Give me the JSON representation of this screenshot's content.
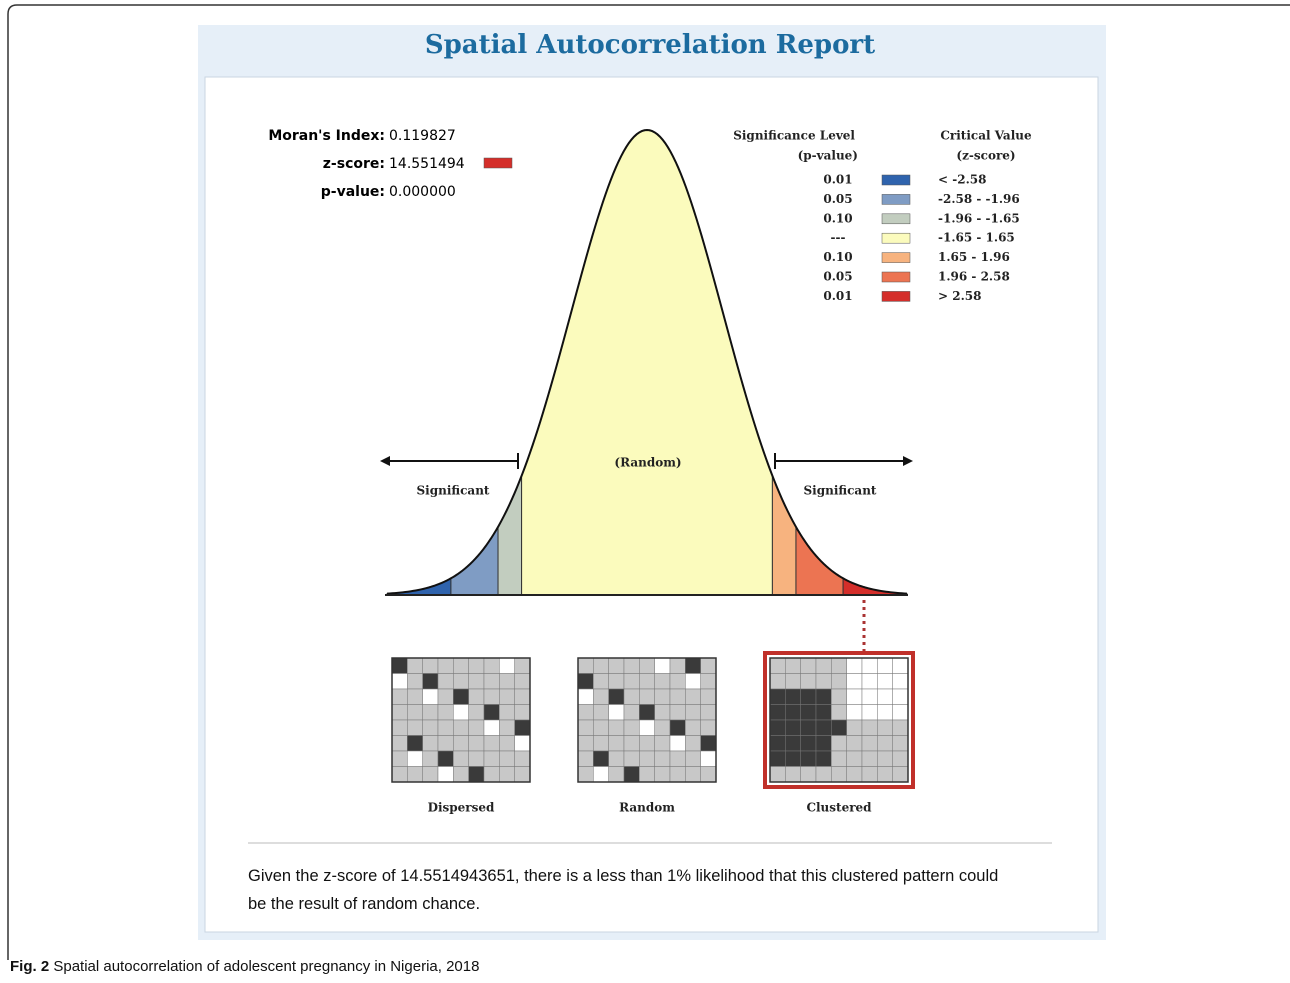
{
  "report": {
    "title": "Spatial Autocorrelation Report",
    "stats": [
      {
        "label": "Moran's Index:",
        "value": "0.119827"
      },
      {
        "label": "z-score:",
        "value": "14.551494"
      },
      {
        "label": "p-value:",
        "value": "0.000000"
      }
    ],
    "legend": {
      "sig_header": "Significance Level",
      "sig_sub": "(p-value)",
      "crit_header": "Critical Value",
      "crit_sub": "(z-score)",
      "rows": [
        {
          "p": "0.01",
          "z": "< -2.58",
          "color": "#2f63ad"
        },
        {
          "p": "0.05",
          "z": "-2.58 - -1.96",
          "color": "#7f9cc4"
        },
        {
          "p": "0.10",
          "z": "-1.96 - -1.65",
          "color": "#c2cdbf"
        },
        {
          "p": "---",
          "z": "-1.65 - 1.65",
          "color": "#fbfbbd"
        },
        {
          "p": "0.10",
          "z": "1.65 - 1.96",
          "color": "#f7b37f"
        },
        {
          "p": "0.05",
          "z": "1.96 - 2.58",
          "color": "#ec7452"
        },
        {
          "p": "0.01",
          "z": "> 2.58",
          "color": "#d42e2a"
        }
      ]
    },
    "curve_labels": {
      "left": "Significant",
      "center": "(Random)",
      "right": "Significant"
    },
    "patterns": [
      "Dispersed",
      "Random",
      "Clustered"
    ],
    "summary": "Given the z-score of 14.5514943651, there is a less than 1% likelihood that this clustered pattern could be the result of random chance."
  },
  "caption": {
    "label": "Fig. 2",
    "text": "Spatial autocorrelation of adolescent pregnancy in Nigeria, 2018"
  }
}
